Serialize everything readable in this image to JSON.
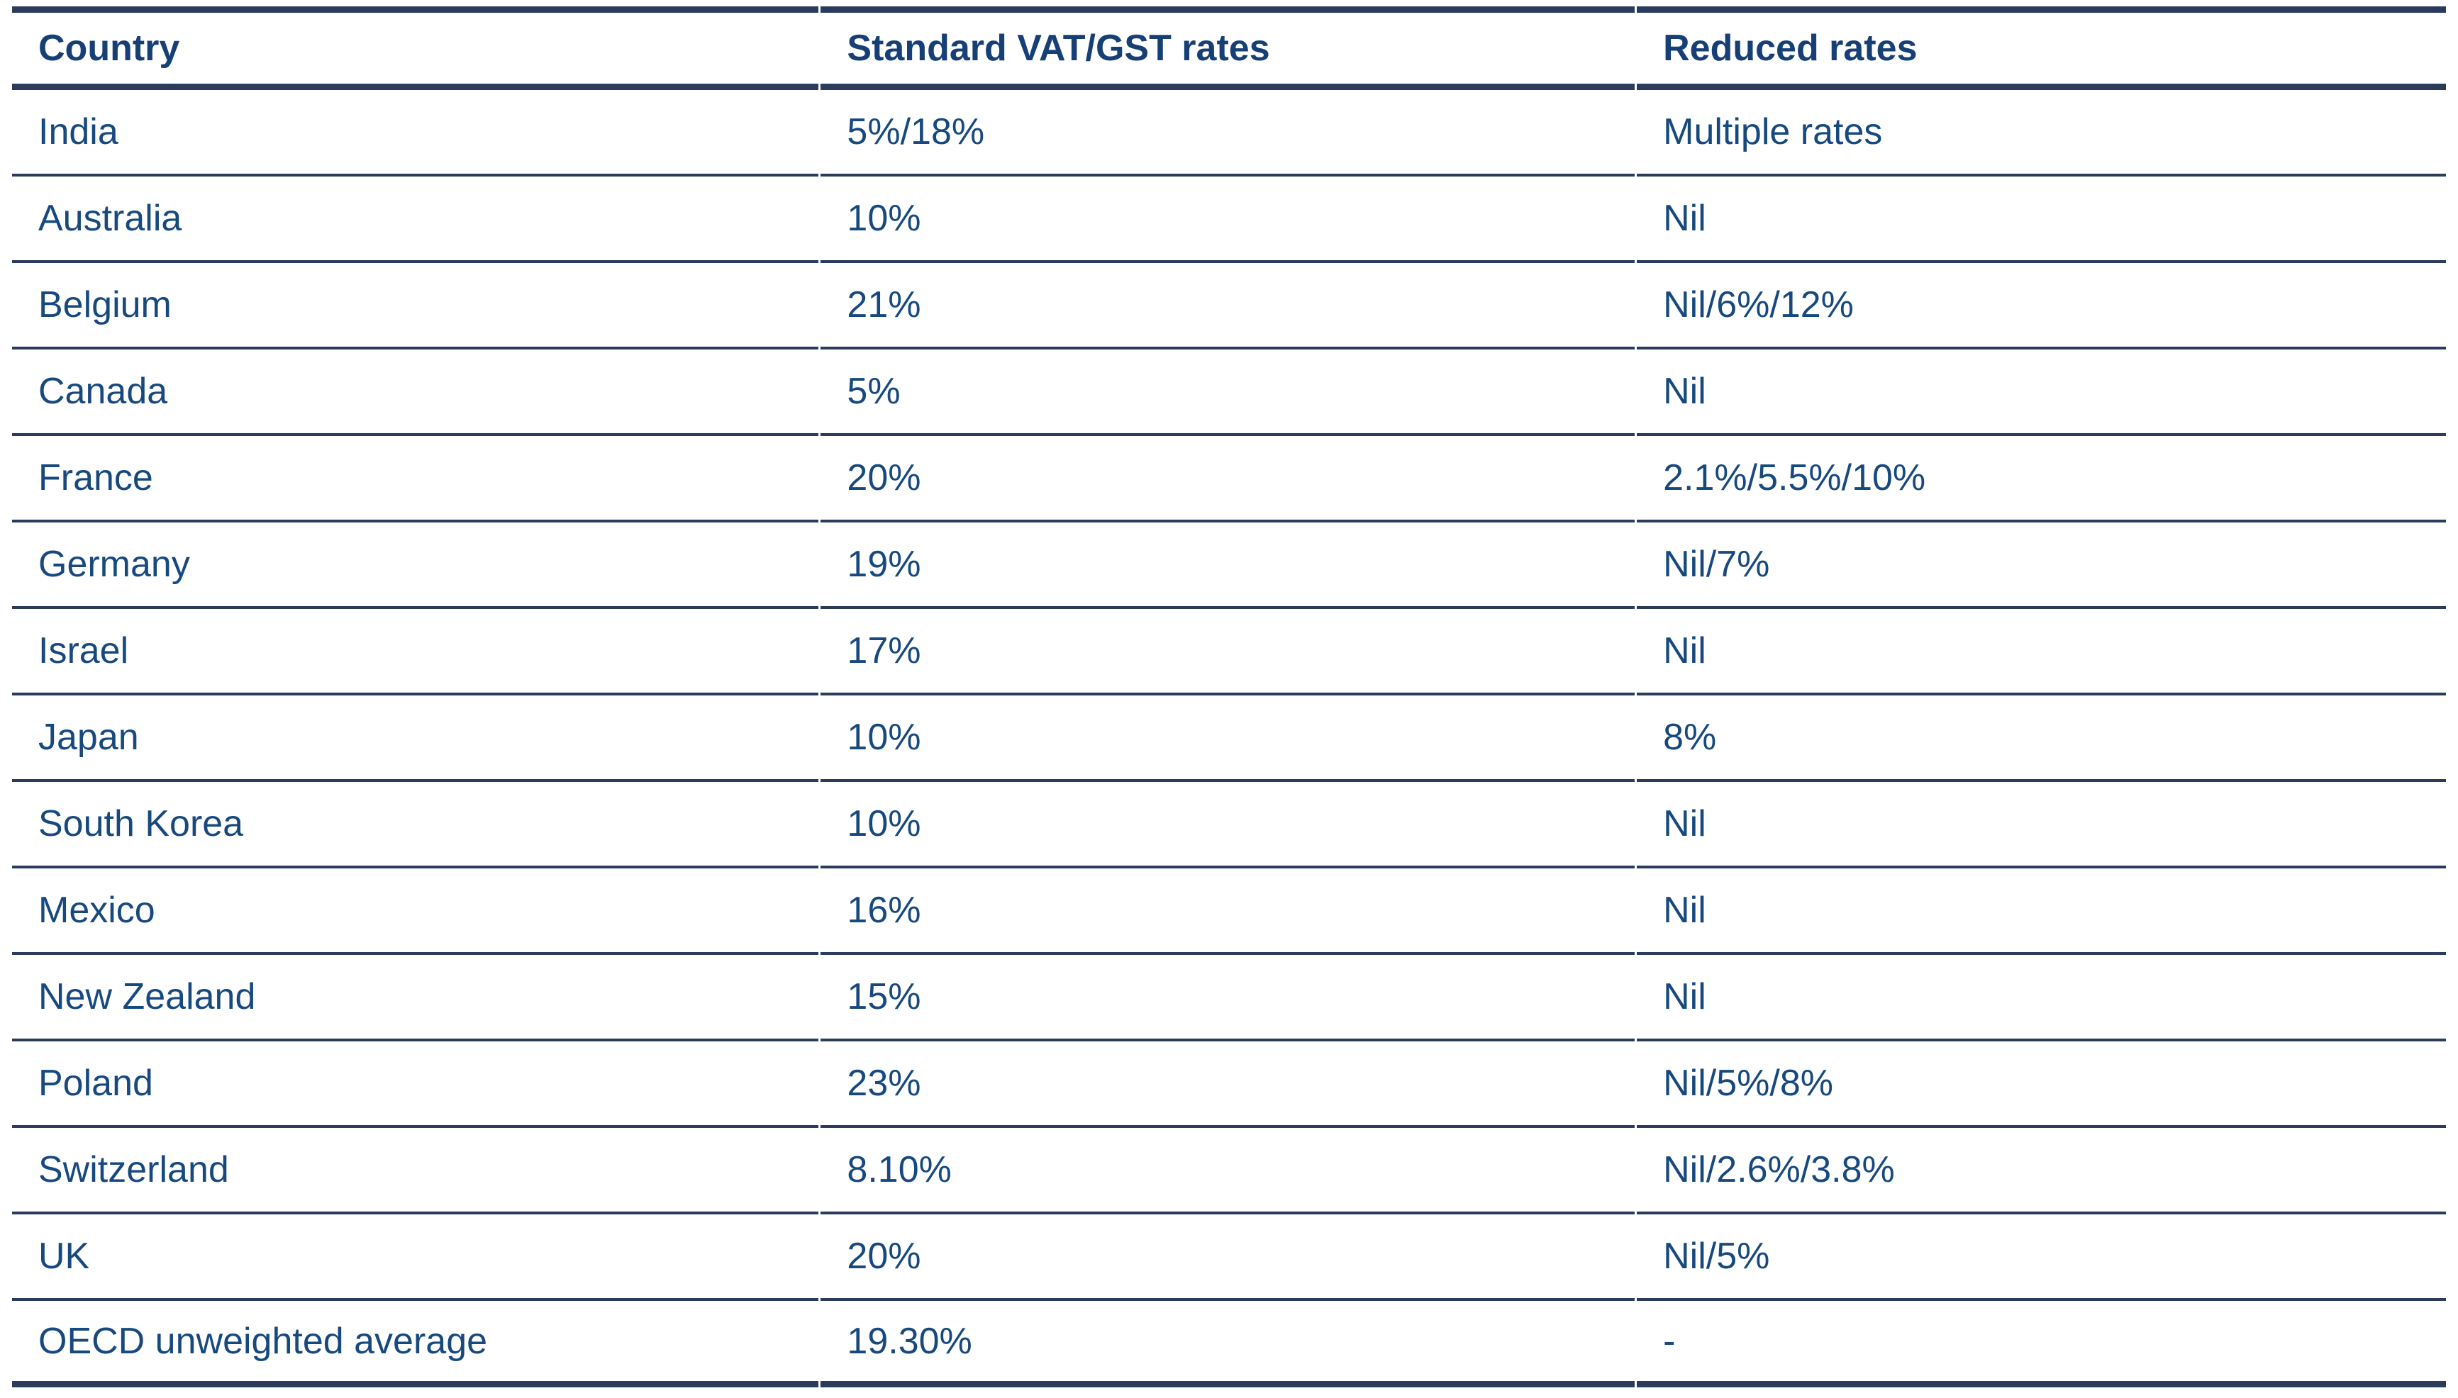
{
  "table": {
    "columns": [
      "Country",
      "Standard VAT/GST rates",
      "Reduced rates"
    ],
    "rows": [
      [
        "India",
        "5%/18%",
        "Multiple rates"
      ],
      [
        "Australia",
        "10%",
        "Nil"
      ],
      [
        "Belgium",
        "21%",
        "Nil/6%/12%"
      ],
      [
        "Canada",
        "5%",
        "Nil"
      ],
      [
        "France",
        "20%",
        "2.1%/5.5%/10%"
      ],
      [
        "Germany",
        "19%",
        "Nil/7%"
      ],
      [
        "Israel",
        "17%",
        "Nil"
      ],
      [
        "Japan",
        "10%",
        "8%"
      ],
      [
        "South Korea",
        "10%",
        "Nil"
      ],
      [
        "Mexico",
        "16%",
        "Nil"
      ],
      [
        "New Zealand",
        "15%",
        "Nil"
      ],
      [
        "Poland",
        "23%",
        "Nil/5%/8%"
      ],
      [
        "Switzerland",
        "8.10%",
        "Nil/2.6%/3.8%"
      ],
      [
        "UK",
        "20%",
        "Nil/5%"
      ],
      [
        "OECD unweighted average",
        "19.30%",
        "-"
      ]
    ],
    "colors": {
      "text": "#17497f",
      "header_text": "#153f75",
      "border": "#2b3b5c",
      "background": "#ffffff"
    }
  }
}
